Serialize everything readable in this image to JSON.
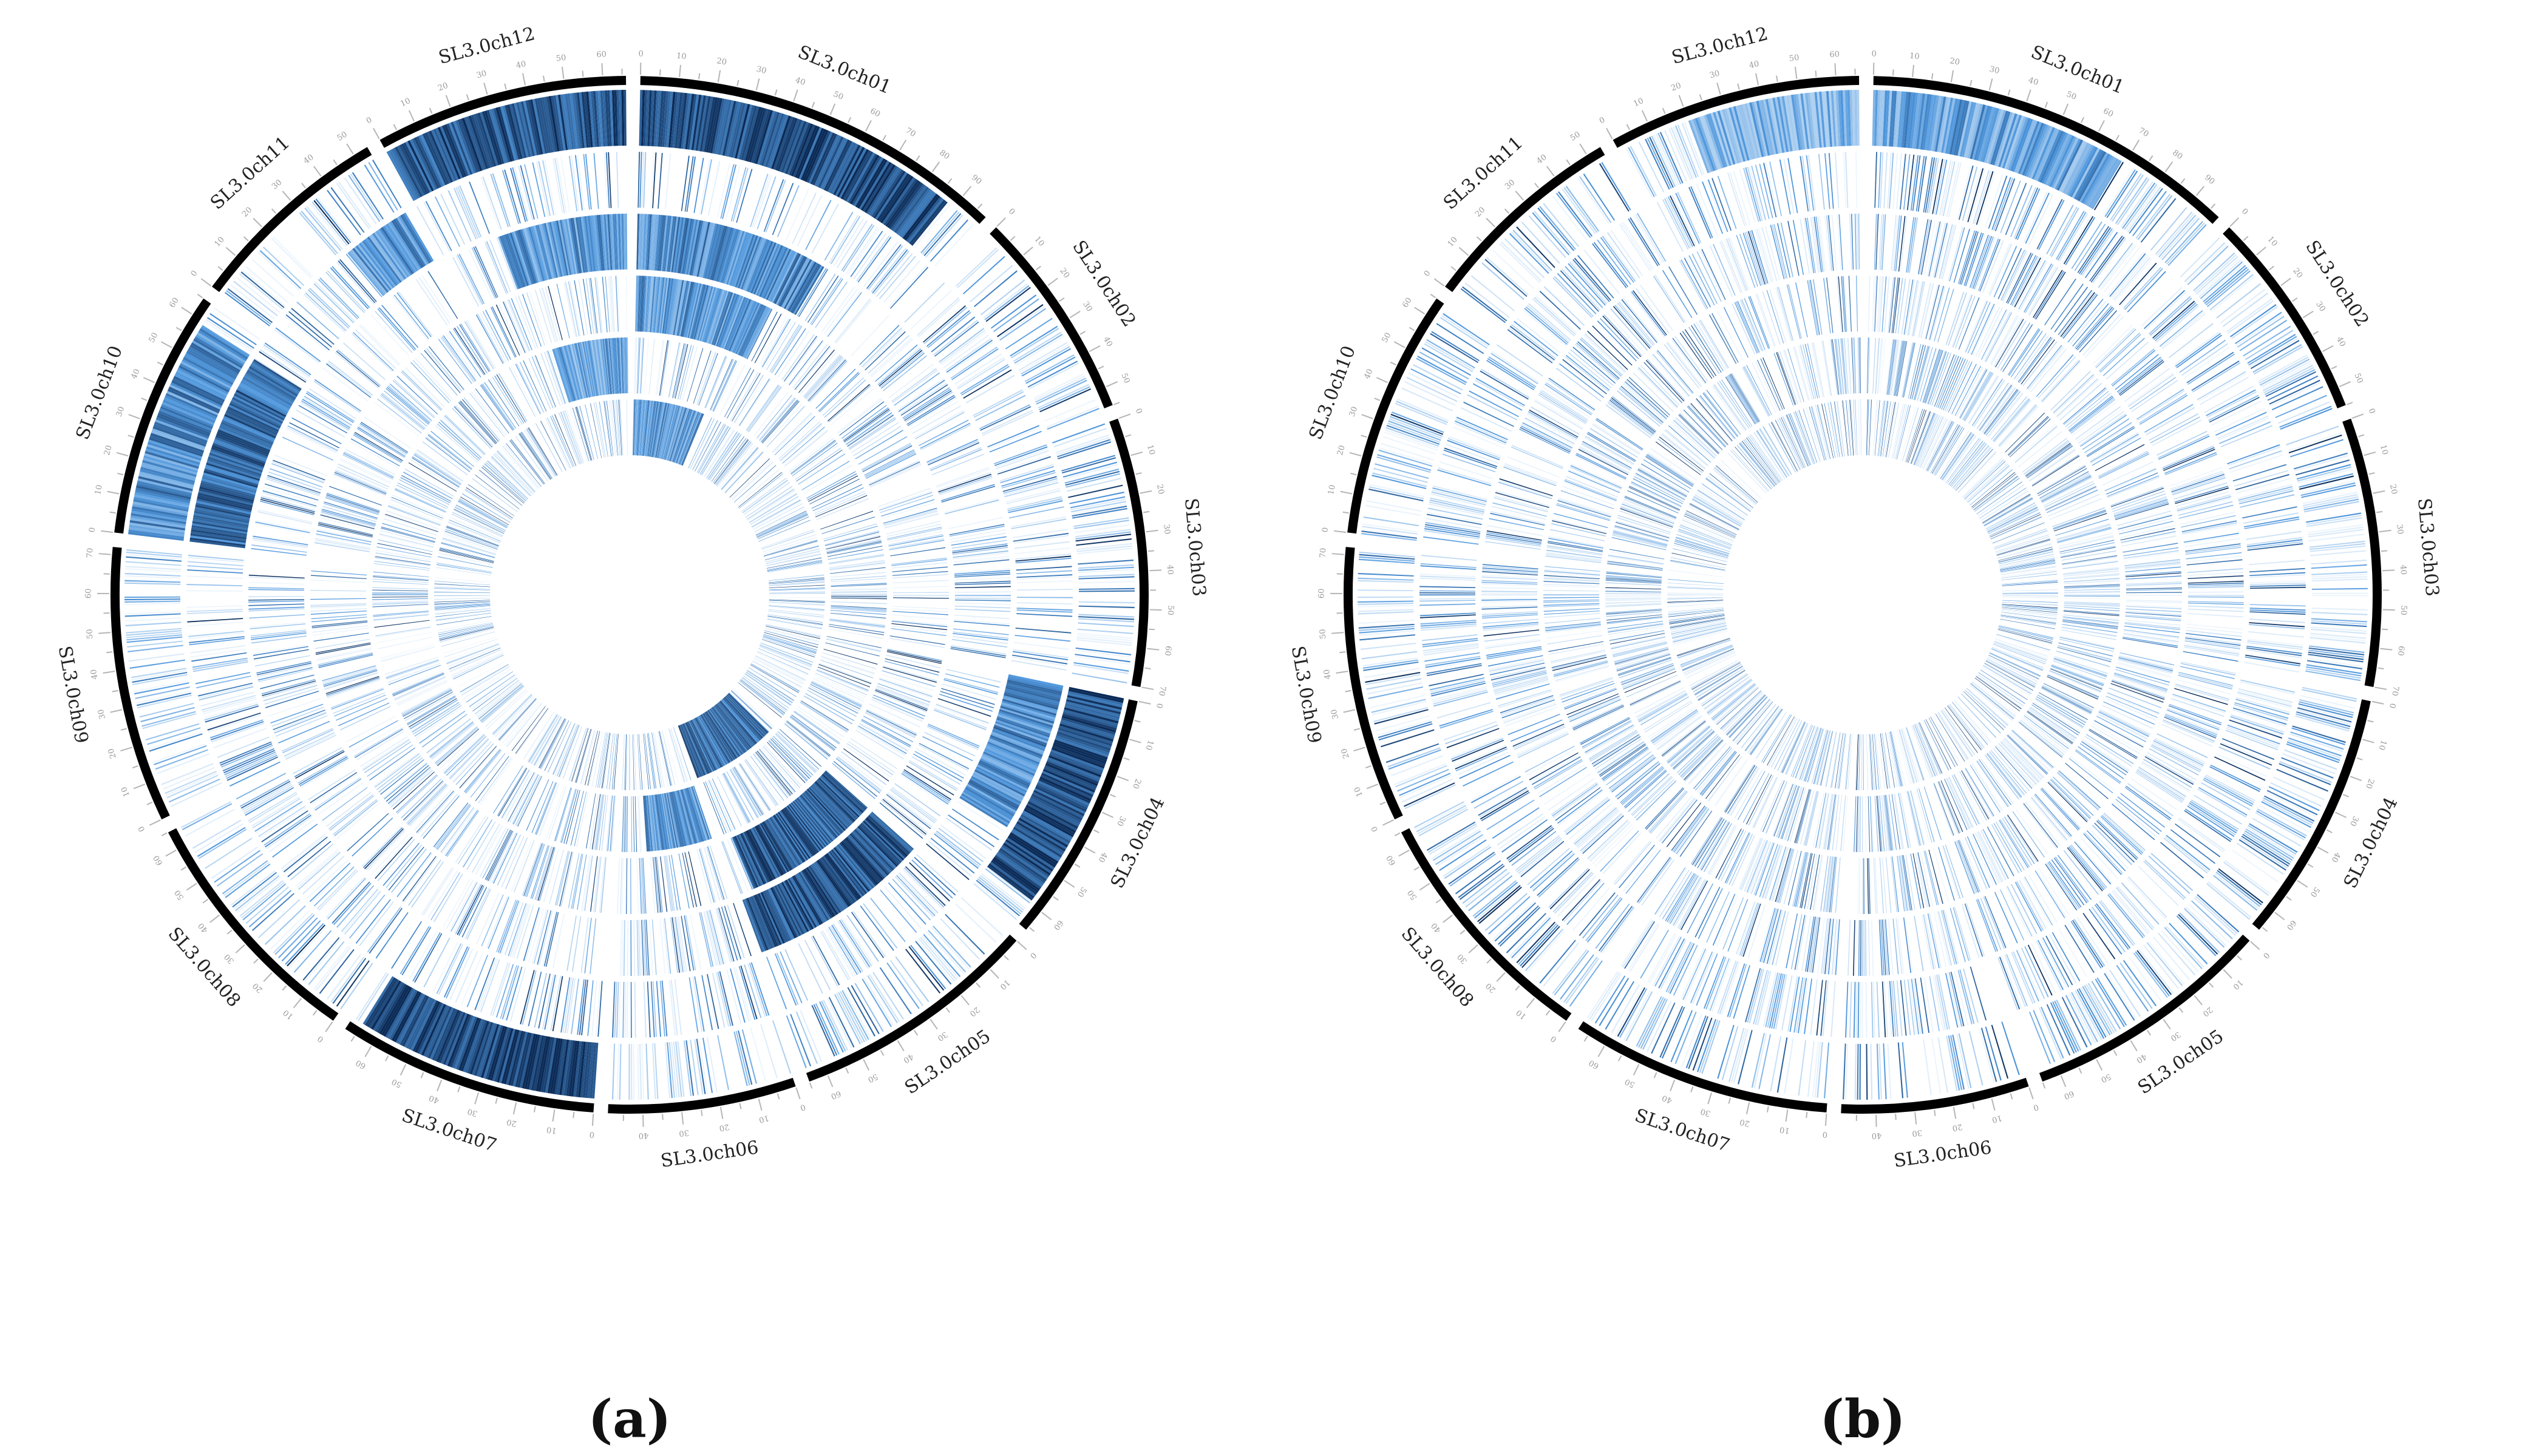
{
  "figure": {
    "panels": [
      {
        "id": "a",
        "label": "(a)"
      },
      {
        "id": "b",
        "label": "(b)"
      }
    ]
  },
  "colors": {
    "background": "#ffffff",
    "ideogram": "#000000",
    "tick": "#b5b5b5",
    "heat_low": "#eef6fd",
    "heat_mid": "#4f97dd",
    "heat_high": "#0b2b57"
  },
  "chart_data": [
    {
      "type": "heatmap",
      "subtype": "circos",
      "panel": "(a)",
      "title": "",
      "chromosomes": [
        {
          "name": "SL3.0ch01",
          "length": 98
        },
        {
          "name": "SL3.0ch02",
          "length": 55
        },
        {
          "name": "SL3.0ch03",
          "length": 70
        },
        {
          "name": "SL3.0ch04",
          "length": 66
        },
        {
          "name": "SL3.0ch05",
          "length": 65
        },
        {
          "name": "SL3.0ch06",
          "length": 49
        },
        {
          "name": "SL3.0ch07",
          "length": 68
        },
        {
          "name": "SL3.0ch08",
          "length": 65
        },
        {
          "name": "SL3.0ch09",
          "length": 72
        },
        {
          "name": "SL3.0ch10",
          "length": 65
        },
        {
          "name": "SL3.0ch11",
          "length": 54
        },
        {
          "name": "SL3.0ch12",
          "length": 66
        }
      ],
      "tick_step": 5,
      "tick_label_step": 10,
      "track_count": 6,
      "dense_regions": [
        {
          "chrom": 0,
          "track": 0,
          "from": 0.0,
          "to": 0.9,
          "level": 0.85
        },
        {
          "chrom": 0,
          "track": 2,
          "from": 0.0,
          "to": 0.7,
          "level": 0.55
        },
        {
          "chrom": 0,
          "track": 3,
          "from": 0.0,
          "to": 0.6,
          "level": 0.5
        },
        {
          "chrom": 0,
          "track": 5,
          "from": 0.0,
          "to": 0.5,
          "level": 0.5
        },
        {
          "chrom": 3,
          "track": 0,
          "from": 0.0,
          "to": 0.9,
          "level": 0.85
        },
        {
          "chrom": 3,
          "track": 1,
          "from": 0.0,
          "to": 0.7,
          "level": 0.55
        },
        {
          "chrom": 4,
          "track": 2,
          "from": 0.0,
          "to": 1.0,
          "level": 0.8
        },
        {
          "chrom": 4,
          "track": 3,
          "from": 0.0,
          "to": 0.9,
          "level": 0.8
        },
        {
          "chrom": 4,
          "track": 5,
          "from": 0.1,
          "to": 1.0,
          "level": 0.7
        },
        {
          "chrom": 5,
          "track": 4,
          "from": 0.0,
          "to": 0.7,
          "level": 0.5
        },
        {
          "chrom": 6,
          "track": 0,
          "from": 0.0,
          "to": 0.95,
          "level": 0.9
        },
        {
          "chrom": 9,
          "track": 0,
          "from": 0.0,
          "to": 0.9,
          "level": 0.55
        },
        {
          "chrom": 9,
          "track": 1,
          "from": 0.0,
          "to": 0.9,
          "level": 0.7
        },
        {
          "chrom": 11,
          "track": 0,
          "from": 0.0,
          "to": 1.0,
          "level": 0.8
        },
        {
          "chrom": 11,
          "track": 2,
          "from": 0.3,
          "to": 1.0,
          "level": 0.5
        },
        {
          "chrom": 11,
          "track": 4,
          "from": 0.4,
          "to": 1.0,
          "level": 0.45
        },
        {
          "chrom": 10,
          "track": 1,
          "from": 0.6,
          "to": 1.0,
          "level": 0.5
        }
      ],
      "base_density": 0.45,
      "seed": 17
    },
    {
      "type": "heatmap",
      "subtype": "circos",
      "panel": "(b)",
      "title": "",
      "chromosomes": [
        {
          "name": "SL3.0ch01",
          "length": 98
        },
        {
          "name": "SL3.0ch02",
          "length": 55
        },
        {
          "name": "SL3.0ch03",
          "length": 70
        },
        {
          "name": "SL3.0ch04",
          "length": 66
        },
        {
          "name": "SL3.0ch05",
          "length": 65
        },
        {
          "name": "SL3.0ch06",
          "length": 49
        },
        {
          "name": "SL3.0ch07",
          "length": 68
        },
        {
          "name": "SL3.0ch08",
          "length": 65
        },
        {
          "name": "SL3.0ch09",
          "length": 72
        },
        {
          "name": "SL3.0ch10",
          "length": 65
        },
        {
          "name": "SL3.0ch11",
          "length": 54
        },
        {
          "name": "SL3.0ch12",
          "length": 66
        }
      ],
      "tick_step": 5,
      "tick_label_step": 10,
      "track_count": 6,
      "dense_regions": [
        {
          "chrom": 0,
          "track": 0,
          "from": 0.0,
          "to": 0.7,
          "level": 0.45
        },
        {
          "chrom": 11,
          "track": 0,
          "from": 0.3,
          "to": 1.0,
          "level": 0.3
        }
      ],
      "base_density": 0.5,
      "seed": 91
    }
  ]
}
